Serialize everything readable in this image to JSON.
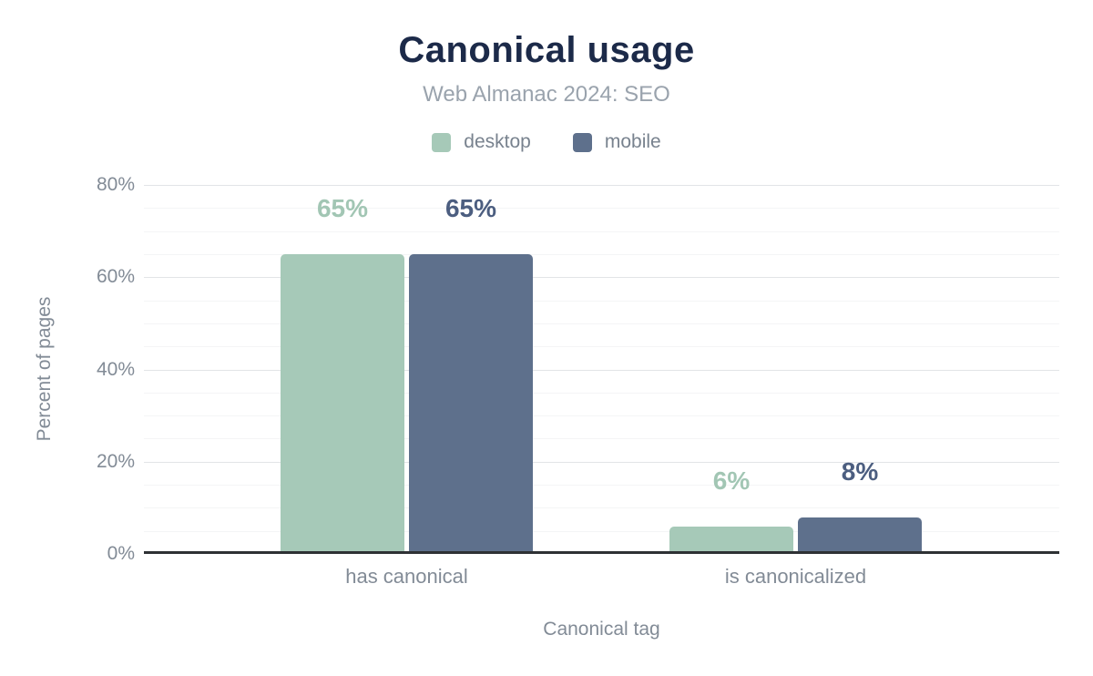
{
  "chart_data": {
    "type": "bar",
    "title": "Canonical usage",
    "subtitle": "Web Almanac 2024: SEO",
    "categories": [
      "has canonical",
      "is canonicalized"
    ],
    "series": [
      {
        "name": "desktop",
        "color": "#a6c9b8",
        "label_color": "#a2c6b4",
        "values": [
          65,
          6
        ],
        "value_labels": [
          "65%",
          "6%"
        ]
      },
      {
        "name": "mobile",
        "color": "#5e708c",
        "label_color": "#4c5e80",
        "values": [
          65,
          8
        ],
        "value_labels": [
          "65%",
          "8%"
        ]
      }
    ],
    "xlabel": "Canonical tag",
    "ylabel": "Percent of pages",
    "ylim": [
      0,
      80
    ],
    "y_ticks": [
      "0%",
      "20%",
      "40%",
      "60%",
      "80%"
    ],
    "y_tick_values": [
      0,
      20,
      40,
      60,
      80
    ],
    "minor_grid_step": 5,
    "grid": "on",
    "legend_position": "top",
    "colors": {
      "title": "#1c2a49",
      "subtitle": "#9aa3ad",
      "axis_text": "#828b96",
      "baseline": "#2e3134",
      "major_grid": "#e2e4e7",
      "minor_grid": "#f4f5f6"
    }
  }
}
